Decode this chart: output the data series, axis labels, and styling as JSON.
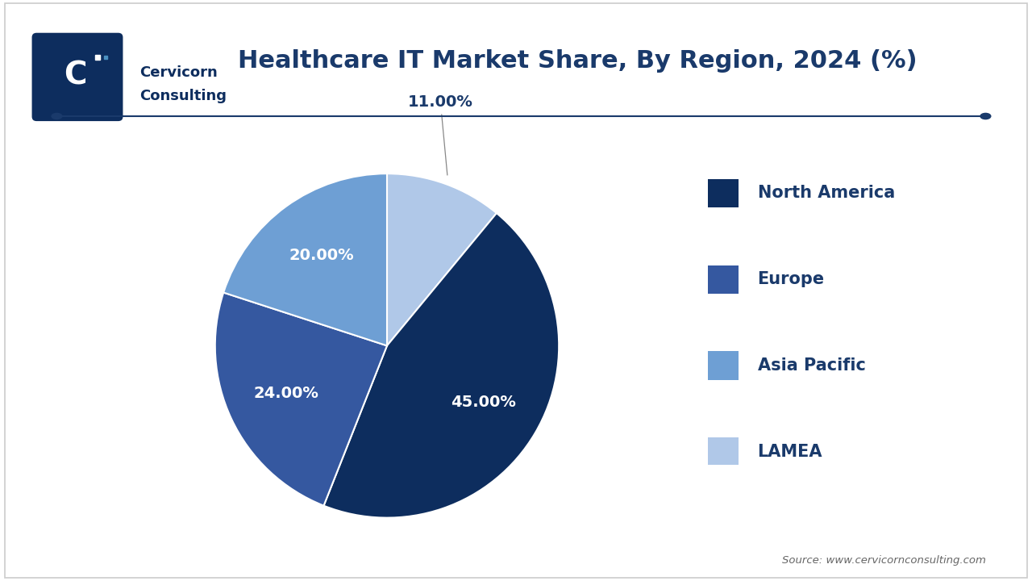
{
  "title": "Healthcare IT Market Share, By Region, 2024 (%)",
  "slices": [
    {
      "label": "North America",
      "value": 45.0,
      "color": "#0d2d5e",
      "text_color": "#ffffff"
    },
    {
      "label": "Europe",
      "value": 24.0,
      "color": "#3558a0",
      "text_color": "#ffffff"
    },
    {
      "label": "Asia Pacific",
      "value": 20.0,
      "color": "#6e9fd4",
      "text_color": "#ffffff"
    },
    {
      "label": "LAMEA",
      "value": 11.0,
      "color": "#b0c8e8",
      "text_color": "#0d2d5e"
    }
  ],
  "legend_colors": [
    "#0d2d5e",
    "#3558a0",
    "#6e9fd4",
    "#b0c8e8"
  ],
  "legend_labels": [
    "North America",
    "Europe",
    "Asia Pacific",
    "LAMEA"
  ],
  "background_color": "#ffffff",
  "title_color": "#1a3a6b",
  "title_fontsize": 22,
  "source_text": "Source: www.cervicornconsulting.com",
  "separator_line_color": "#1a3a6b",
  "label_fontsize": 14,
  "legend_fontsize": 15
}
